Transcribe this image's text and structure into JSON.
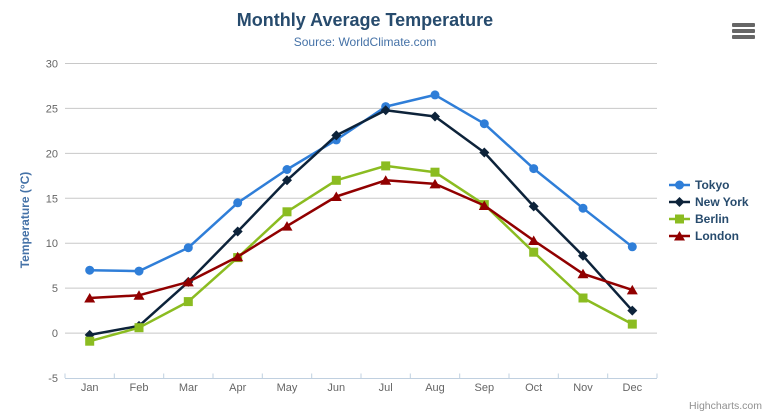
{
  "chart_data": {
    "type": "line",
    "title": "Monthly Average Temperature",
    "subtitle": "Source: WorldClimate.com",
    "categories": [
      "Jan",
      "Feb",
      "Mar",
      "Apr",
      "May",
      "Jun",
      "Jul",
      "Aug",
      "Sep",
      "Oct",
      "Nov",
      "Dec"
    ],
    "series": [
      {
        "name": "Tokyo",
        "color": "#2f7ed8",
        "marker": "circle",
        "values": [
          7.0,
          6.9,
          9.5,
          14.5,
          18.2,
          21.5,
          25.2,
          26.5,
          23.3,
          18.3,
          13.9,
          9.6
        ]
      },
      {
        "name": "New York",
        "color": "#0d233a",
        "marker": "diamond",
        "values": [
          -0.2,
          0.8,
          5.7,
          11.3,
          17.0,
          22.0,
          24.8,
          24.1,
          20.1,
          14.1,
          8.6,
          2.5
        ]
      },
      {
        "name": "Berlin",
        "color": "#8bbc21",
        "marker": "square",
        "values": [
          -0.9,
          0.6,
          3.5,
          8.4,
          13.5,
          17.0,
          18.6,
          17.9,
          14.3,
          9.0,
          3.9,
          1.0
        ]
      },
      {
        "name": "London",
        "color": "#910000",
        "marker": "triangle",
        "values": [
          3.9,
          4.2,
          5.7,
          8.5,
          11.9,
          15.2,
          17.0,
          16.6,
          14.2,
          10.3,
          6.6,
          4.8
        ]
      }
    ],
    "xlabel": "",
    "ylabel": "Temperature (°C)",
    "ylim": [
      -5,
      30
    ],
    "ytick_step": 5,
    "grid": true,
    "legend_position": "right"
  },
  "colors": {
    "title": "#274b6d",
    "subtitle": "#4572a7",
    "axis_title": "#4572a7",
    "axis_labels": "#666666",
    "legend_text": "#274b6d",
    "gridline": "#c8c8c8",
    "axis_line": "#c0d0e0",
    "credits": "#909090",
    "menu_icon": "#666666"
  },
  "menu": {
    "icon": "hamburger-icon"
  },
  "credits": {
    "label": "Highcharts.com"
  }
}
